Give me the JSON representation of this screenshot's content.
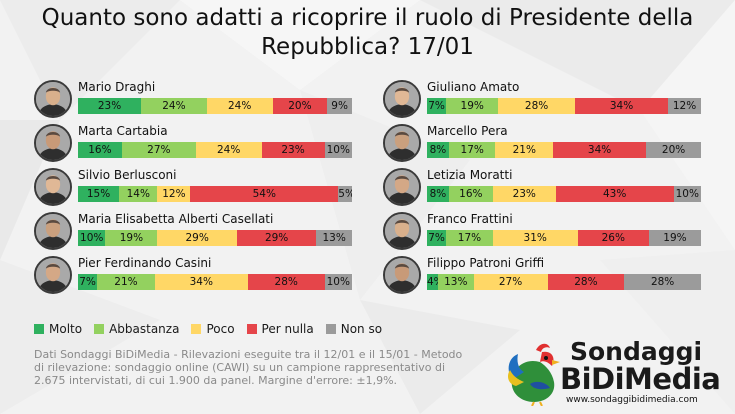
{
  "title": {
    "line1": "Quanto sono adatti a ricoprire il ruolo di Presidente della",
    "line2": "Repubblica? 17/01"
  },
  "colors": {
    "molto": "#2fb15f",
    "abbastanza": "#93d15f",
    "poco": "#ffd766",
    "per_nulla": "#e5454a",
    "non_so": "#9b9b9b"
  },
  "chart_data": {
    "type": "bar",
    "orientation": "horizontal-stacked-100",
    "series_names": [
      "Molto",
      "Abbastanza",
      "Poco",
      "Per nulla",
      "Non so"
    ],
    "left_column": [
      {
        "name": "Mario Draghi",
        "values": [
          23,
          24,
          24,
          20,
          9
        ],
        "labels": [
          "23%",
          "24%",
          "24%",
          "20%",
          "9%"
        ]
      },
      {
        "name": "Marta Cartabia",
        "values": [
          16,
          27,
          24,
          23,
          10
        ],
        "labels": [
          "16%",
          "27%",
          "24%",
          "23%",
          "10%"
        ]
      },
      {
        "name": "Silvio Berlusconi",
        "values": [
          15,
          14,
          12,
          54,
          5
        ],
        "labels": [
          "15%",
          "14%",
          "12%",
          "54%",
          "5%"
        ]
      },
      {
        "name": "Maria Elisabetta Alberti Casellati",
        "values": [
          10,
          19,
          29,
          29,
          13
        ],
        "labels": [
          "10%",
          "19%",
          "29%",
          "29%",
          "13%"
        ]
      },
      {
        "name": "Pier Ferdinando Casini",
        "values": [
          7,
          21,
          34,
          28,
          10
        ],
        "labels": [
          "7%",
          "21%",
          "34%",
          "28%",
          "10%"
        ]
      }
    ],
    "right_column": [
      {
        "name": "Giuliano Amato",
        "values": [
          7,
          19,
          28,
          34,
          12
        ],
        "labels": [
          "7%",
          "19%",
          "28%",
          "34%",
          "12%"
        ]
      },
      {
        "name": "Marcello Pera",
        "values": [
          8,
          17,
          21,
          34,
          20
        ],
        "labels": [
          "8%",
          "17%",
          "21%",
          "34%",
          "20%"
        ]
      },
      {
        "name": "Letizia Moratti",
        "values": [
          8,
          16,
          23,
          43,
          10
        ],
        "labels": [
          "8%",
          "16%",
          "23%",
          "43%",
          "10%"
        ]
      },
      {
        "name": "Franco Frattini",
        "values": [
          7,
          17,
          31,
          26,
          19
        ],
        "labels": [
          "7%",
          "17%",
          "31%",
          "26%",
          "19%"
        ]
      },
      {
        "name": "Filippo Patroni Griffi",
        "values": [
          4,
          13,
          27,
          28,
          28
        ],
        "labels": [
          "4%",
          "13%",
          "27%",
          "28%",
          "28%"
        ]
      }
    ]
  },
  "legend": {
    "items": [
      {
        "label": "Molto",
        "color": "#2fb15f"
      },
      {
        "label": "Abbastanza",
        "color": "#93d15f"
      },
      {
        "label": "Poco",
        "color": "#ffd766"
      },
      {
        "label": "Per nulla",
        "color": "#e5454a"
      },
      {
        "label": "Non so",
        "color": "#9b9b9b"
      }
    ]
  },
  "note": "Dati Sondaggi BiDiMedia - Rilevazioni eseguite tra il 12/01 e il 15/01 - Metodo di rilevazione: sondaggio online (CAWI) su un campione rappresentativo di 2.675 intervistati, di cui 1.900 da panel. Margine d'errore: ±1,9%.",
  "logo": {
    "line1": "Sondaggi",
    "line2": "BiDiMedia",
    "url": "www.sondaggibidimedia.com"
  }
}
